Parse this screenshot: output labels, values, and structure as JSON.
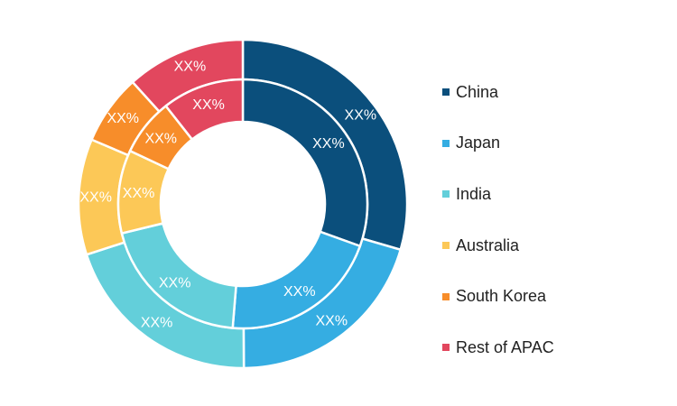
{
  "chart_data": {
    "type": "pie",
    "style": "nested-donut",
    "categories": [
      "China",
      "Japan",
      "India",
      "Australia",
      "South Korea",
      "Rest of APAC"
    ],
    "colors": [
      "#0b4f7c",
      "#35ade2",
      "#63cfda",
      "#fcc857",
      "#f78d2a",
      "#e2475e"
    ],
    "rings": [
      {
        "ring": "outer",
        "values": [
          0.295,
          0.204,
          0.201,
          0.114,
          0.069,
          0.117
        ],
        "labels": [
          "XX%",
          "XX%",
          "XX%",
          "XX%",
          "XX%",
          "XX%"
        ]
      },
      {
        "ring": "inner",
        "values": [
          0.305,
          0.208,
          0.199,
          0.108,
          0.074,
          0.106
        ],
        "labels": [
          "XX%",
          "XX%",
          "XX%",
          "XX%",
          "XX%",
          "XX%"
        ]
      }
    ],
    "legend": {
      "position": "right",
      "items": [
        "China",
        "Japan",
        "India",
        "Australia",
        "South Korea",
        "Rest of APAC"
      ]
    }
  }
}
